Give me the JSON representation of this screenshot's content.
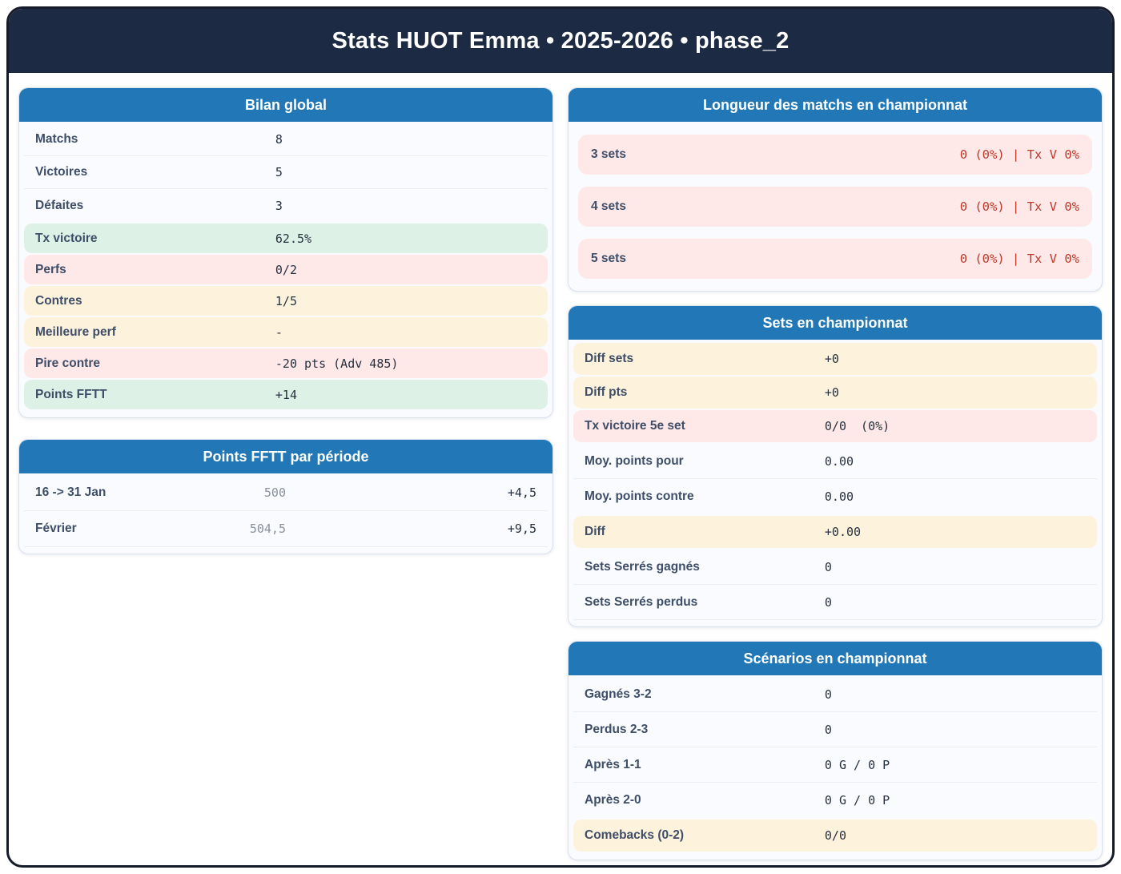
{
  "header": {
    "title": "Stats HUOT Emma • 2025-2026 • phase_2"
  },
  "colors": {
    "navy_header": "#1d2a44",
    "panel_header_blue": "#2278b6",
    "green_row": "#def1e6",
    "pink_row": "#fee8e8",
    "cream_row": "#fdf2dc",
    "red_value_text": "#c0392b"
  },
  "panels": {
    "bilan": {
      "title": "Bilan global",
      "rows": [
        {
          "label": "Matchs",
          "value": "8",
          "tone": "plain"
        },
        {
          "label": "Victoires",
          "value": "5",
          "tone": "plain"
        },
        {
          "label": "Défaites",
          "value": "3",
          "tone": "plain"
        },
        {
          "label": "Tx victoire",
          "value": "62.5%",
          "tone": "green"
        },
        {
          "label": "Perfs",
          "value": "0/2",
          "tone": "pink"
        },
        {
          "label": "Contres",
          "value": "1/5",
          "tone": "cream"
        },
        {
          "label": "Meilleure perf",
          "value": "-",
          "tone": "cream"
        },
        {
          "label": "Pire contre",
          "value": "-20 pts (Adv 485)",
          "tone": "pink"
        },
        {
          "label": "Points FFTT",
          "value": "+14",
          "tone": "green"
        }
      ]
    },
    "points_periode": {
      "title": "Points FFTT par période",
      "rows": [
        {
          "label": "16 -> 31 Jan",
          "points": "500",
          "delta": "+4,5"
        },
        {
          "label": "Février",
          "points": "504,5",
          "delta": "+9,5"
        }
      ]
    },
    "longueur": {
      "title": "Longueur des matchs en championnat",
      "rows": [
        {
          "label": "3 sets",
          "value": "0 (0%) | Tx V 0%"
        },
        {
          "label": "4 sets",
          "value": "0 (0%) | Tx V 0%"
        },
        {
          "label": "5 sets",
          "value": "0 (0%) | Tx V 0%"
        }
      ]
    },
    "sets": {
      "title": "Sets en championnat",
      "rows": [
        {
          "label": "Diff sets",
          "value": "+0",
          "tone": "cream"
        },
        {
          "label": "Diff pts",
          "value": "+0",
          "tone": "cream"
        },
        {
          "label": "Tx victoire 5e set",
          "value": "0/0  (0%)",
          "tone": "pink"
        },
        {
          "label": "Moy. points pour",
          "value": "0.00",
          "tone": "plain"
        },
        {
          "label": "Moy. points contre",
          "value": "0.00",
          "tone": "plain"
        },
        {
          "label": "Diff",
          "value": "+0.00",
          "tone": "cream"
        },
        {
          "label": "Sets Serrés gagnés",
          "value": "0",
          "tone": "plain"
        },
        {
          "label": "Sets Serrés perdus",
          "value": "0",
          "tone": "plain"
        }
      ]
    },
    "scenarios": {
      "title": "Scénarios en championnat",
      "rows": [
        {
          "label": "Gagnés 3-2",
          "value": "0",
          "tone": "plain"
        },
        {
          "label": "Perdus 2-3",
          "value": "0",
          "tone": "plain"
        },
        {
          "label": "Après 1-1",
          "value": "0 G / 0 P",
          "tone": "plain"
        },
        {
          "label": "Après 2-0",
          "value": "0 G / 0 P",
          "tone": "plain"
        },
        {
          "label": "Comebacks (0-2)",
          "value": "0/0",
          "tone": "cream"
        }
      ]
    }
  }
}
